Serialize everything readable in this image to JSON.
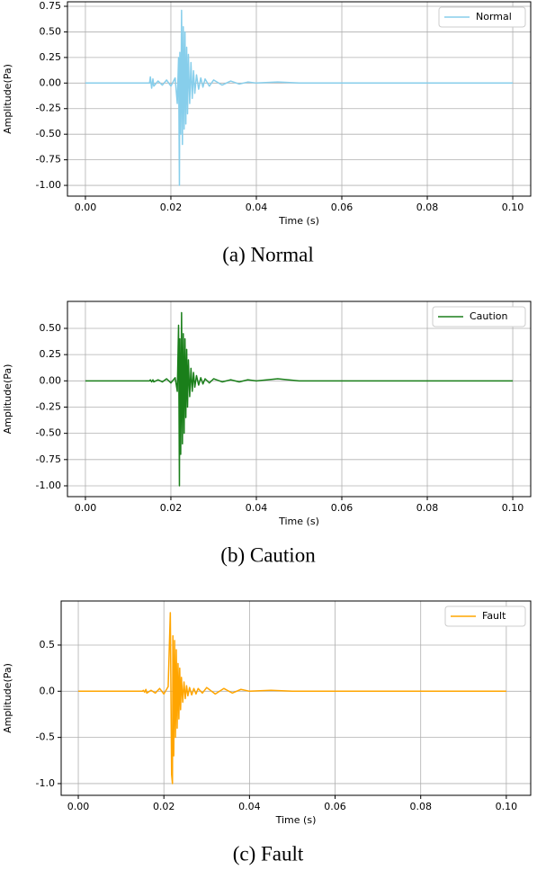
{
  "chart_data": [
    {
      "type": "line",
      "caption": "(a)  Normal",
      "xlabel": "Time (s)",
      "ylabel": "Amplitude(Pa)",
      "grid": true,
      "legend": "upper right",
      "x": [
        0,
        0.01,
        0.015,
        0.0152,
        0.0155,
        0.0158,
        0.016,
        0.017,
        0.018,
        0.019,
        0.02,
        0.021,
        0.0215,
        0.0218,
        0.022,
        0.0221,
        0.0223,
        0.0225,
        0.0227,
        0.0229,
        0.0231,
        0.0233,
        0.0235,
        0.0237,
        0.0239,
        0.0241,
        0.0244,
        0.0247,
        0.025,
        0.0253,
        0.0256,
        0.026,
        0.0265,
        0.027,
        0.0275,
        0.028,
        0.029,
        0.03,
        0.032,
        0.034,
        0.036,
        0.038,
        0.04,
        0.045,
        0.05,
        0.06,
        0.08,
        0.1
      ],
      "series": [
        {
          "name": "Normal",
          "color": "#87ceeb",
          "values": [
            0,
            0,
            0,
            0.06,
            -0.05,
            0.04,
            -0.03,
            0.02,
            -0.02,
            0.03,
            -0.03,
            0.05,
            -0.2,
            0.25,
            -1.0,
            0.3,
            -0.5,
            0.71,
            -0.6,
            0.55,
            -0.45,
            0.5,
            -0.4,
            0.35,
            -0.3,
            0.28,
            -0.2,
            0.2,
            -0.15,
            0.12,
            -0.1,
            0.08,
            -0.06,
            0.05,
            -0.04,
            0.04,
            -0.03,
            0.03,
            -0.02,
            0.02,
            -0.01,
            0.01,
            0,
            0.01,
            0,
            0,
            0,
            0
          ]
        }
      ],
      "xlim": [
        -0.0042,
        0.1042
      ],
      "ylim": [
        -1.105,
        0.794
      ],
      "xticks": [
        {
          "value": 0,
          "label": "0.00"
        },
        {
          "value": 0.02,
          "label": "0.02"
        },
        {
          "value": 0.04,
          "label": "0.04"
        },
        {
          "value": 0.06,
          "label": "0.06"
        },
        {
          "value": 0.08,
          "label": "0.08"
        },
        {
          "value": 0.1,
          "label": "0.10"
        }
      ],
      "yticks": [
        {
          "value": 0.75,
          "label": "0.75"
        },
        {
          "value": 0.5,
          "label": "0.50"
        },
        {
          "value": 0.25,
          "label": "0.25"
        },
        {
          "value": 0,
          "label": "0.00"
        },
        {
          "value": -0.25,
          "label": "-0.25"
        },
        {
          "value": -0.5,
          "label": "-0.50"
        },
        {
          "value": -0.75,
          "label": "-0.75"
        },
        {
          "value": -1,
          "label": "-1.00"
        }
      ]
    },
    {
      "type": "line",
      "caption": "(b)  Caution",
      "xlabel": "Time (s)",
      "ylabel": "Amplitude(Pa)",
      "grid": true,
      "legend": "upper right",
      "x": [
        0,
        0.01,
        0.015,
        0.0152,
        0.0155,
        0.0158,
        0.016,
        0.017,
        0.018,
        0.019,
        0.02,
        0.021,
        0.0215,
        0.0218,
        0.022,
        0.0221,
        0.0223,
        0.0225,
        0.0227,
        0.0229,
        0.0231,
        0.0233,
        0.0235,
        0.0237,
        0.0239,
        0.0241,
        0.0244,
        0.0247,
        0.025,
        0.0253,
        0.0256,
        0.026,
        0.0265,
        0.027,
        0.0275,
        0.028,
        0.029,
        0.03,
        0.032,
        0.034,
        0.036,
        0.038,
        0.04,
        0.045,
        0.05,
        0.06,
        0.08,
        0.1
      ],
      "series": [
        {
          "name": "Caution",
          "color": "#1a7f1a",
          "values": [
            0,
            0,
            0,
            0.01,
            -0.01,
            0.01,
            -0.01,
            0.01,
            -0.01,
            0.02,
            -0.02,
            0.03,
            -0.1,
            0.53,
            -1.0,
            0.4,
            -0.7,
            0.65,
            -0.6,
            0.45,
            -0.5,
            0.4,
            -0.35,
            0.3,
            -0.25,
            0.2,
            -0.15,
            0.12,
            -0.1,
            0.08,
            -0.06,
            0.05,
            -0.04,
            0.03,
            -0.03,
            0.02,
            -0.02,
            0.02,
            -0.01,
            0.01,
            -0.01,
            0.01,
            0,
            0.02,
            0,
            0,
            0,
            0
          ]
        }
      ],
      "xlim": [
        -0.0042,
        0.1042
      ],
      "ylim": [
        -1.103,
        0.757
      ],
      "xticks": [
        {
          "value": 0,
          "label": "0.00"
        },
        {
          "value": 0.02,
          "label": "0.02"
        },
        {
          "value": 0.04,
          "label": "0.04"
        },
        {
          "value": 0.06,
          "label": "0.06"
        },
        {
          "value": 0.08,
          "label": "0.08"
        },
        {
          "value": 0.1,
          "label": "0.10"
        }
      ],
      "yticks": [
        {
          "value": 0.5,
          "label": "0.50"
        },
        {
          "value": 0.25,
          "label": "0.25"
        },
        {
          "value": 0,
          "label": "0.00"
        },
        {
          "value": -0.25,
          "label": "-0.25"
        },
        {
          "value": -0.5,
          "label": "-0.50"
        },
        {
          "value": -0.75,
          "label": "-0.75"
        },
        {
          "value": -1,
          "label": "-1.00"
        }
      ]
    },
    {
      "type": "line",
      "caption": "(c)  Fault",
      "xlabel": "Time (s)",
      "ylabel": "Amplitude(Pa)",
      "grid": true,
      "legend": "upper right",
      "x": [
        0,
        0.01,
        0.015,
        0.0152,
        0.0155,
        0.0158,
        0.016,
        0.017,
        0.018,
        0.019,
        0.02,
        0.021,
        0.0215,
        0.0218,
        0.022,
        0.0221,
        0.0223,
        0.0225,
        0.0227,
        0.0229,
        0.0231,
        0.0233,
        0.0235,
        0.0237,
        0.0239,
        0.0241,
        0.0244,
        0.0247,
        0.025,
        0.0253,
        0.0256,
        0.026,
        0.0265,
        0.027,
        0.0275,
        0.028,
        0.029,
        0.03,
        0.032,
        0.034,
        0.036,
        0.038,
        0.04,
        0.045,
        0.05,
        0.06,
        0.08,
        0.1
      ],
      "series": [
        {
          "name": "Fault",
          "color": "#ffa500",
          "values": [
            0,
            0,
            0,
            0.01,
            -0.01,
            0.02,
            -0.02,
            0.01,
            -0.02,
            0.03,
            -0.03,
            0.05,
            0.85,
            -0.9,
            -1.0,
            0.6,
            -0.7,
            0.55,
            -0.5,
            0.45,
            -0.4,
            0.3,
            -0.3,
            0.25,
            -0.2,
            0.15,
            -0.12,
            0.1,
            -0.08,
            0.06,
            -0.05,
            0.04,
            -0.04,
            0.03,
            -0.03,
            0.03,
            -0.02,
            0.04,
            -0.03,
            0.03,
            -0.02,
            0.02,
            0,
            0.01,
            0,
            0,
            0,
            0
          ]
        }
      ],
      "xlim": [
        -0.004,
        0.1057
      ],
      "ylim": [
        -1.127,
        0.977
      ],
      "xticks": [
        {
          "value": 0,
          "label": "0.00"
        },
        {
          "value": 0.02,
          "label": "0.02"
        },
        {
          "value": 0.04,
          "label": "0.04"
        },
        {
          "value": 0.06,
          "label": "0.06"
        },
        {
          "value": 0.08,
          "label": "0.08"
        },
        {
          "value": 0.1,
          "label": "0.10"
        }
      ],
      "yticks": [
        {
          "value": 0.5,
          "label": "0.5"
        },
        {
          "value": 0,
          "label": "0.0"
        },
        {
          "value": -0.5,
          "label": "-0.5"
        },
        {
          "value": -1,
          "label": "-1.0"
        }
      ]
    }
  ]
}
